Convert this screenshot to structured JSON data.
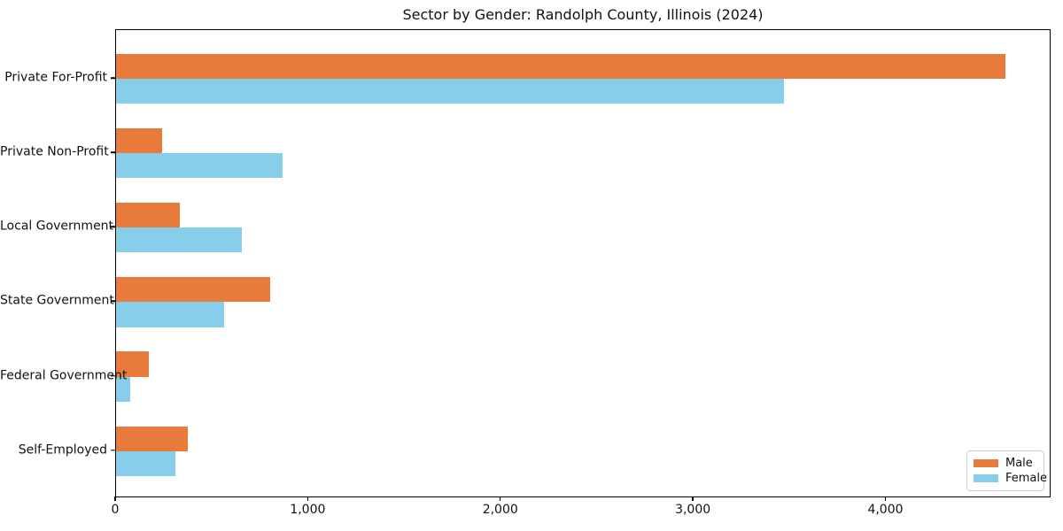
{
  "title": "Sector by Gender: Randolph County, Illinois (2024)",
  "chart_data": {
    "type": "bar",
    "orientation": "horizontal",
    "title": "Sector by Gender: Randolph County, Illinois (2024)",
    "categories": [
      "Private For-Profit",
      "Private Non-Profit",
      "Local Government",
      "State Government",
      "Federal Government",
      "Self-Employed"
    ],
    "series": [
      {
        "name": "Male",
        "color": "#E87A3C",
        "values": [
          4627,
          240,
          331,
          801,
          169,
          373
        ]
      },
      {
        "name": "Female",
        "color": "#87CEEB",
        "values": [
          3476,
          866,
          655,
          564,
          74,
          307
        ]
      }
    ],
    "xlabel": "",
    "ylabel": "",
    "xlim": [
      0,
      4858
    ],
    "x_ticks": [
      {
        "value": 0,
        "label": "0"
      },
      {
        "value": 1000,
        "label": "1,000"
      },
      {
        "value": 2000,
        "label": "2,000"
      },
      {
        "value": 3000,
        "label": "3,000"
      },
      {
        "value": 4000,
        "label": "4,000"
      }
    ],
    "grid": false,
    "legend_position": "lower right",
    "legend_labels": [
      "Male",
      "Female"
    ]
  }
}
